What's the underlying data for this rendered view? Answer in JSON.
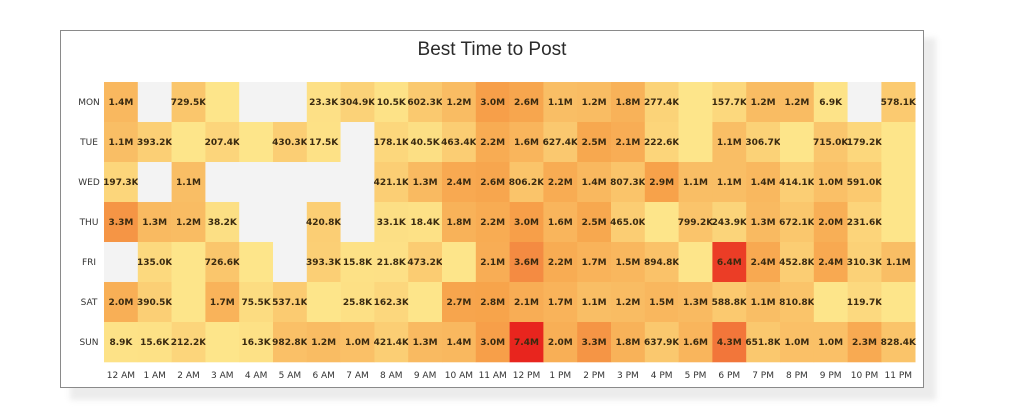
{
  "chart_data": {
    "type": "heatmap",
    "title": "Best Time to Post",
    "x_categories": [
      "12 AM",
      "1 AM",
      "2 AM",
      "3 AM",
      "4 AM",
      "5 AM",
      "6 AM",
      "7 AM",
      "8 AM",
      "9 AM",
      "10 AM",
      "11 AM",
      "12 PM",
      "1 PM",
      "2 PM",
      "3 PM",
      "4 PM",
      "5 PM",
      "6 PM",
      "7 PM",
      "8 PM",
      "9 PM",
      "10 PM",
      "11 PM"
    ],
    "y_categories": [
      "MON",
      "TUE",
      "WED",
      "THU",
      "FRI",
      "SAT",
      "SUN"
    ],
    "labels": [
      [
        "1.4M",
        null,
        "729.5K",
        "",
        null,
        null,
        "23.3K",
        "304.9K",
        "10.5K",
        "602.3K",
        "1.2M",
        "3.0M",
        "2.6M",
        "1.1M",
        "1.2M",
        "1.8M",
        "277.4K",
        "",
        "157.7K",
        "1.2M",
        "1.2M",
        "6.9K",
        null,
        "578.1K"
      ],
      [
        "1.1M",
        "393.2K",
        "",
        "207.4K",
        "",
        "430.3K",
        "17.5K",
        null,
        "178.1K",
        "40.5K",
        "463.4K",
        "2.2M",
        "1.6M",
        "627.4K",
        "2.5M",
        "2.1M",
        "222.6K",
        "",
        "1.1M",
        "306.7K",
        "",
        "715.0K",
        "179.2K",
        ""
      ],
      [
        "197.3K",
        null,
        "1.1M",
        null,
        null,
        null,
        null,
        null,
        "421.1K",
        "1.3M",
        "2.4M",
        "2.6M",
        "806.2K",
        "2.2M",
        "1.4M",
        "807.3K",
        "2.9M",
        "1.1M",
        "1.1M",
        "1.4M",
        "414.1K",
        "1.0M",
        "591.0K",
        ""
      ],
      [
        "3.3M",
        "1.3M",
        "1.2M",
        "38.2K",
        null,
        null,
        "420.8K",
        null,
        "33.1K",
        "18.4K",
        "1.8M",
        "2.2M",
        "3.0M",
        "1.6M",
        "2.5M",
        "465.0K",
        "",
        "799.2K",
        "243.9K",
        "1.3M",
        "672.1K",
        "2.0M",
        "231.6K",
        ""
      ],
      [
        null,
        "135.0K",
        "",
        "726.6K",
        "",
        null,
        "393.3K",
        "15.8K",
        "21.8K",
        "473.2K",
        "",
        "2.1M",
        "3.6M",
        "2.2M",
        "1.7M",
        "1.5M",
        "894.8K",
        "",
        "6.4M",
        "2.4M",
        "452.8K",
        "2.4M",
        "310.3K",
        "1.1M"
      ],
      [
        "2.0M",
        "390.5K",
        "",
        "1.7M",
        "75.5K",
        "537.1K",
        "",
        "25.8K",
        "162.3K",
        "",
        "2.7M",
        "2.8M",
        "2.1M",
        "1.7M",
        "1.1M",
        "1.2M",
        "1.5M",
        "1.3M",
        "588.8K",
        "1.1M",
        "810.8K",
        "",
        "119.7K",
        ""
      ],
      [
        "8.9K",
        "15.6K",
        "212.2K",
        "",
        "16.3K",
        "982.8K",
        "1.2M",
        "1.0M",
        "421.4K",
        "1.3M",
        "1.4M",
        "3.0M",
        "7.4M",
        "2.0M",
        "3.3M",
        "1.8M",
        "637.9K",
        "1.6M",
        "4.3M",
        "651.8K",
        "1.0M",
        "1.0M",
        "2.3M",
        "828.4K"
      ]
    ],
    "color_scale": {
      "low": "#fde58a",
      "mid": "#f7a24a",
      "high": "#e8251e",
      "empty": "#f3f3f3"
    },
    "legend": "none",
    "grid": false
  }
}
